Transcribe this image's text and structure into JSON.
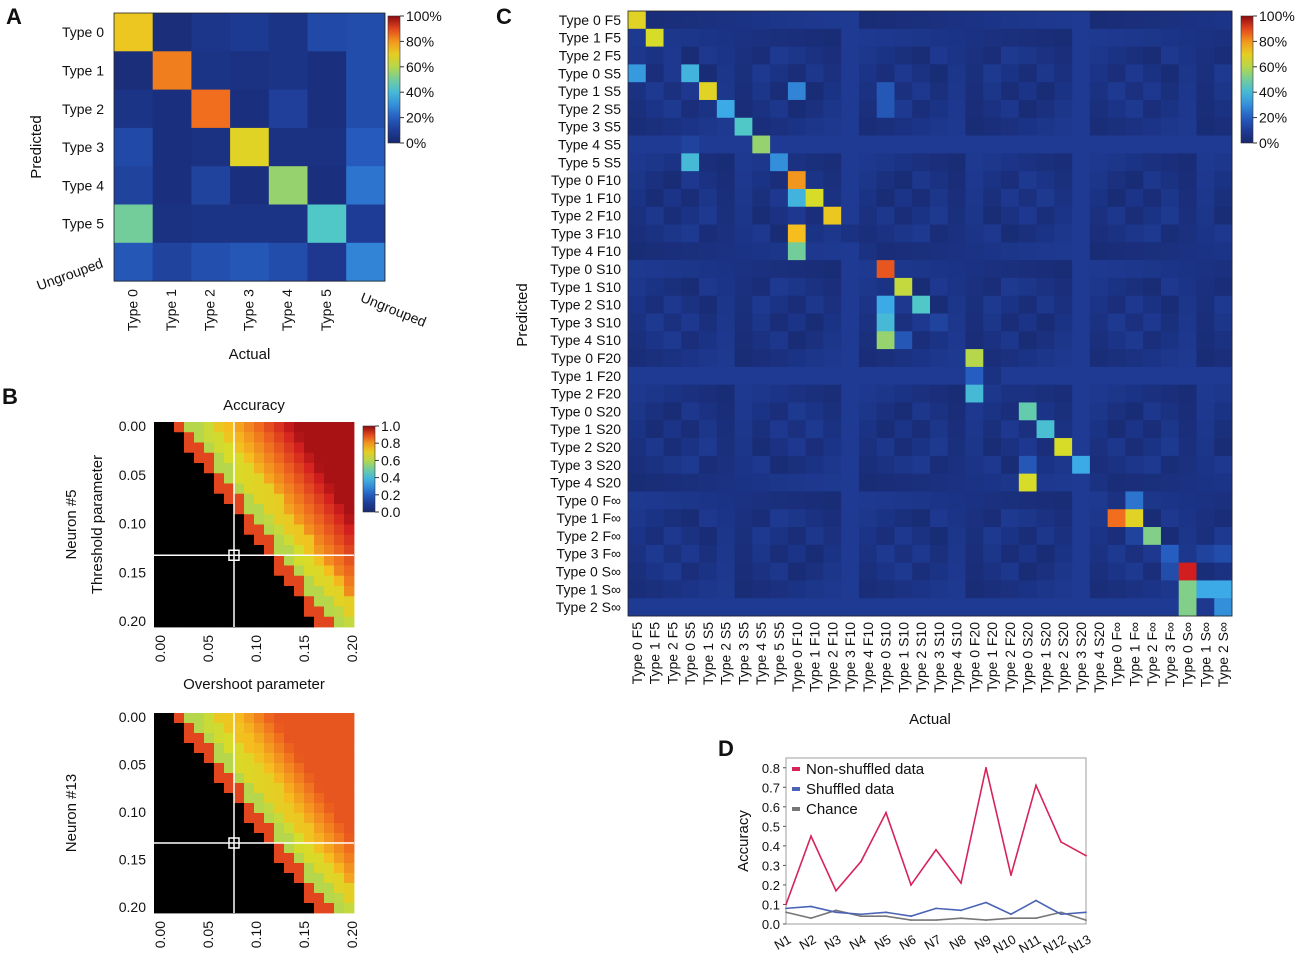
{
  "figure": {
    "panels": {
      "a": "A",
      "b": "B",
      "c": "C",
      "d": "D"
    }
  },
  "chart_data": [
    {
      "id": "A",
      "type": "heatmap",
      "xlabel": "Actual",
      "ylabel": "Predicted",
      "x_categories": [
        "Type 0",
        "Type 1",
        "Type 2",
        "Type 3",
        "Type 4",
        "Type 5",
        "Ungrouped"
      ],
      "y_categories": [
        "Type 0",
        "Type 1",
        "Type 2",
        "Type 3",
        "Type 4",
        "Type 5",
        "Ungrouped"
      ],
      "values": [
        [
          72,
          3,
          7,
          9,
          6,
          14,
          15
        ],
        [
          3,
          83,
          6,
          5,
          6,
          4,
          15
        ],
        [
          6,
          4,
          85,
          4,
          11,
          4,
          15
        ],
        [
          14,
          4,
          5,
          68,
          5,
          5,
          19
        ],
        [
          12,
          4,
          12,
          4,
          55,
          4,
          25
        ],
        [
          50,
          5,
          6,
          6,
          6,
          45,
          10
        ],
        [
          18,
          12,
          16,
          18,
          15,
          8,
          28
        ]
      ],
      "colorbar": {
        "ticks": [
          "100%",
          "80%",
          "60%",
          "40%",
          "20%",
          "0%"
        ],
        "range": [
          0,
          100
        ]
      }
    },
    {
      "id": "B1",
      "type": "heatmap",
      "title": "Accuracy",
      "xlabel": "Overshoot parameter",
      "ylabel": "Threshold parameter",
      "neuron_label": "Neuron #5",
      "x_ticks": [
        "0.00",
        "0.05",
        "0.10",
        "0.15",
        "0.20"
      ],
      "y_ticks": [
        "0.00",
        "0.05",
        "0.10",
        "0.15",
        "0.20"
      ],
      "xlim": [
        0,
        0.2
      ],
      "ylim": [
        0,
        0.2
      ],
      "selected_point": [
        0.08,
        0.13
      ],
      "grid_size": 20,
      "colorbar": {
        "ticks": [
          "1.0",
          "0.8",
          "0.6",
          "0.4",
          "0.2",
          "0.0"
        ],
        "range": [
          0,
          1
        ]
      }
    },
    {
      "id": "B2",
      "type": "heatmap",
      "xlabel": "",
      "ylabel": "",
      "neuron_label": "Neuron #13",
      "x_ticks": [
        "0.00",
        "0.05",
        "0.10",
        "0.15",
        "0.20"
      ],
      "y_ticks": [
        "0.00",
        "0.05",
        "0.10",
        "0.15",
        "0.20"
      ],
      "xlim": [
        0,
        0.2
      ],
      "ylim": [
        0,
        0.2
      ],
      "selected_point": [
        0.08,
        0.13
      ],
      "grid_size": 20
    },
    {
      "id": "C",
      "type": "heatmap",
      "xlabel": "Actual",
      "ylabel": "Predicted",
      "categories": [
        "Type 0 F5",
        "Type 1 F5",
        "Type 2 F5",
        "Type 0 S5",
        "Type 1 S5",
        "Type 2 S5",
        "Type 3 S5",
        "Type 4 S5",
        "Type 5 S5",
        "Type 0 F10",
        "Type 1 F10",
        "Type 2 F10",
        "Type 3 F10",
        "Type 4 F10",
        "Type 0 S10",
        "Type 1 S10",
        "Type 2 S10",
        "Type 3 S10",
        "Type 4 S10",
        "Type 0 F20",
        "Type 1 F20",
        "Type 2 F20",
        "Type 0 S20",
        "Type 1 S20",
        "Type 2 S20",
        "Type 3 S20",
        "Type 4 S20",
        "Type 0 F∞",
        "Type 1 F∞",
        "Type 2 F∞",
        "Type 3 F∞",
        "Type 0 S∞",
        "Type 1 S∞",
        "Type 2 S∞"
      ],
      "diagonal": [
        68,
        65,
        8,
        38,
        68,
        35,
        45,
        55,
        30,
        80,
        65,
        72,
        5,
        5,
        88,
        62,
        45,
        12,
        8,
        60,
        5,
        5,
        48,
        42,
        65,
        35,
        5,
        5,
        68,
        52,
        20,
        95,
        35,
        30
      ],
      "off_diagonal_cells": [
        [
          3,
          0,
          32
        ],
        [
          7,
          3,
          12
        ],
        [
          4,
          9,
          28
        ],
        [
          4,
          14,
          18
        ],
        [
          5,
          14,
          18
        ],
        [
          9,
          3,
          8
        ],
        [
          8,
          3,
          40
        ],
        [
          10,
          9,
          38
        ],
        [
          12,
          9,
          75
        ],
        [
          13,
          9,
          50
        ],
        [
          16,
          14,
          35
        ],
        [
          17,
          14,
          40
        ],
        [
          18,
          14,
          55
        ],
        [
          18,
          15,
          18
        ],
        [
          20,
          19,
          20
        ],
        [
          21,
          19,
          40
        ],
        [
          25,
          22,
          18
        ],
        [
          26,
          22,
          65
        ],
        [
          27,
          28,
          25
        ],
        [
          28,
          27,
          85
        ],
        [
          29,
          28,
          12
        ],
        [
          31,
          30,
          15
        ],
        [
          32,
          31,
          52
        ],
        [
          33,
          31,
          52
        ],
        [
          33,
          32,
          8
        ],
        [
          32,
          33,
          35
        ],
        [
          30,
          33,
          15
        ],
        [
          30,
          32,
          12
        ]
      ],
      "colorbar": {
        "ticks": [
          "100%",
          "80%",
          "60%",
          "40%",
          "20%",
          "0%"
        ],
        "range": [
          0,
          100
        ]
      }
    },
    {
      "id": "D",
      "type": "line",
      "ylabel": "Accuracy",
      "xlabel": "",
      "categories": [
        "N1",
        "N2",
        "N3",
        "N4",
        "N5",
        "N6",
        "N7",
        "N8",
        "N9",
        "N10",
        "N11",
        "N12",
        "N13"
      ],
      "y_ticks": [
        "0.0",
        "0.1",
        "0.2",
        "0.3",
        "0.4",
        "0.5",
        "0.6",
        "0.7",
        "0.8"
      ],
      "ylim": [
        0,
        0.85
      ],
      "series": [
        {
          "name": "Non-shuffled data",
          "color": "#d6245a",
          "values": [
            0.1,
            0.45,
            0.17,
            0.32,
            0.57,
            0.2,
            0.38,
            0.21,
            0.8,
            0.25,
            0.71,
            0.42,
            0.35
          ]
        },
        {
          "name": "Shuffled data",
          "color": "#4a63b4",
          "values": [
            0.08,
            0.09,
            0.06,
            0.05,
            0.06,
            0.04,
            0.08,
            0.07,
            0.11,
            0.05,
            0.12,
            0.05,
            0.06
          ]
        },
        {
          "name": "Chance",
          "color": "#777777",
          "values": [
            0.06,
            0.03,
            0.07,
            0.04,
            0.04,
            0.02,
            0.02,
            0.03,
            0.02,
            0.03,
            0.03,
            0.06,
            0.02
          ]
        }
      ]
    }
  ]
}
